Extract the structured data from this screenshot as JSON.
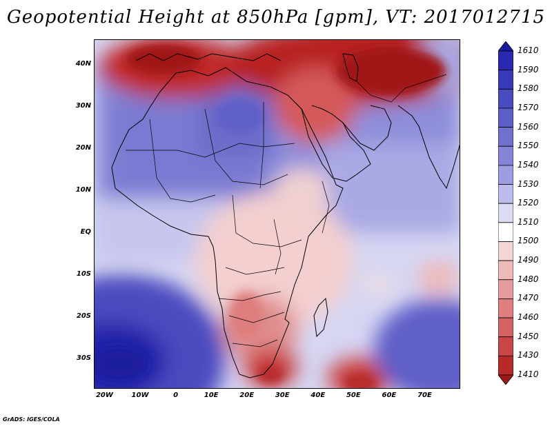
{
  "title": "Geopotential Height at 850hPa [gpm], VT: 2017012715",
  "credit": "GrADS: IGES/COLA",
  "map": {
    "projection": "latlon",
    "lon_range": [
      -23,
      80
    ],
    "lat_range": [
      -37,
      46
    ],
    "lat_ticks": [
      {
        "label": "40N",
        "value": 40
      },
      {
        "label": "30N",
        "value": 30
      },
      {
        "label": "20N",
        "value": 20
      },
      {
        "label": "10N",
        "value": 10
      },
      {
        "label": "EQ",
        "value": 0
      },
      {
        "label": "10S",
        "value": -10
      },
      {
        "label": "20S",
        "value": -20
      },
      {
        "label": "30S",
        "value": -30
      }
    ],
    "lon_ticks": [
      {
        "label": "20W",
        "value": -20
      },
      {
        "label": "10W",
        "value": -10
      },
      {
        "label": "0",
        "value": 0
      },
      {
        "label": "10E",
        "value": 10
      },
      {
        "label": "20E",
        "value": 20
      },
      {
        "label": "30E",
        "value": 30
      },
      {
        "label": "40E",
        "value": 40
      },
      {
        "label": "50E",
        "value": 50
      },
      {
        "label": "60E",
        "value": 60
      },
      {
        "label": "70E",
        "value": 70
      }
    ]
  },
  "colorbar": {
    "labels": [
      "1610",
      "1590",
      "1580",
      "1570",
      "1560",
      "1550",
      "1540",
      "1530",
      "1520",
      "1510",
      "1500",
      "1490",
      "1480",
      "1470",
      "1460",
      "1450",
      "1430",
      "1410"
    ],
    "colors": [
      "#1a1a9e",
      "#2828b0",
      "#3a3ab8",
      "#4b4bc0",
      "#5e5ec8",
      "#7070cf",
      "#8585d7",
      "#9d9de0",
      "#bbbbec",
      "#dcdcf5",
      "#ffffff",
      "#f5d6d6",
      "#eebaba",
      "#e69c9c",
      "#de7e7e",
      "#d46262",
      "#c94646",
      "#b82a2a",
      "#a01818"
    ]
  }
}
